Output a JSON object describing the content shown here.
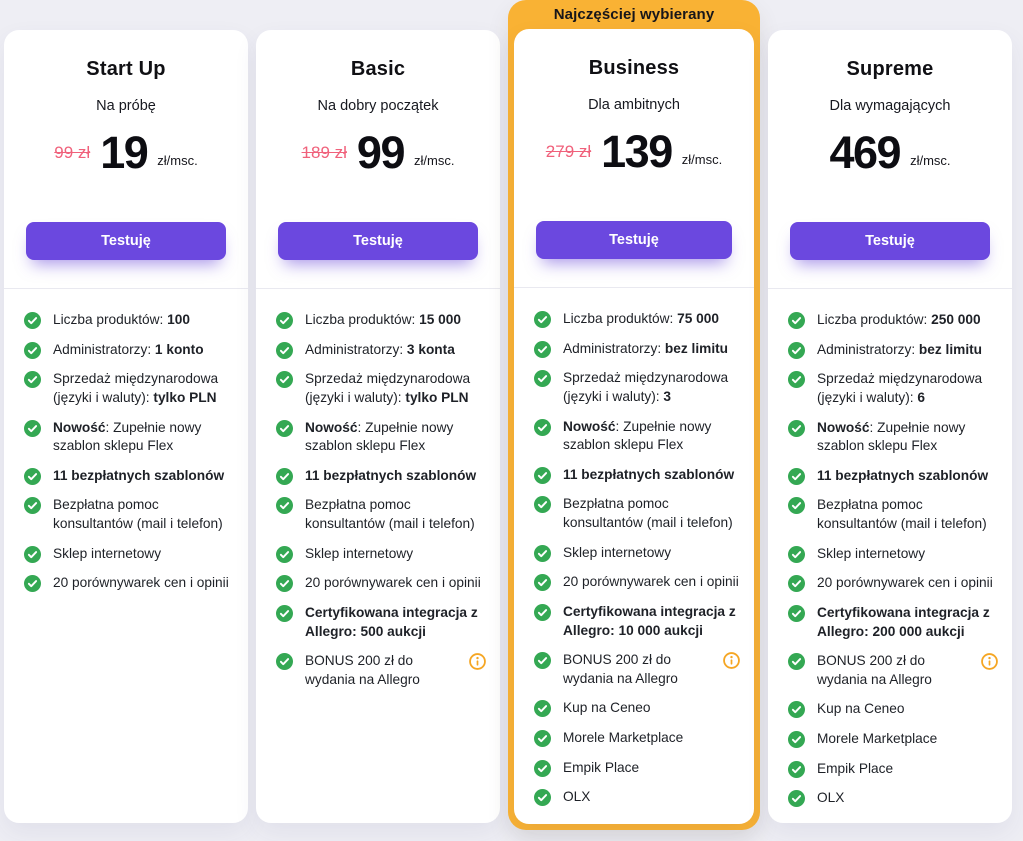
{
  "colors": {
    "page_background": "#EEEEF4",
    "accent_purple": "#6B48DF",
    "badge_orange": "#F9B234",
    "check_green": "#34A853",
    "info_orange": "#F5A623",
    "old_price_red": "#F0617B"
  },
  "badge": {
    "label": "Najczęściej wybierany"
  },
  "cards": [
    {
      "title": "Start Up",
      "tagline": "Na próbę",
      "old_price": "99 zł",
      "price": "19",
      "price_unit": "zł/msc.",
      "cta": "Testuję",
      "highlighted": false,
      "features": [
        {
          "segments": [
            {
              "t": "Liczba produktów: ",
              "b": false
            },
            {
              "t": "100",
              "b": true
            }
          ]
        },
        {
          "segments": [
            {
              "t": "Administratorzy: ",
              "b": false
            },
            {
              "t": "1 konto",
              "b": true
            }
          ]
        },
        {
          "segments": [
            {
              "t": "Sprzedaż międzynarodowa (języki i waluty): ",
              "b": false
            },
            {
              "t": "tylko PLN",
              "b": true
            }
          ]
        },
        {
          "segments": [
            {
              "t": "Nowość",
              "b": true
            },
            {
              "t": ": Zupełnie nowy szablon sklepu Flex",
              "b": false
            }
          ]
        },
        {
          "segments": [
            {
              "t": "11 bezpłatnych szablonów",
              "b": true
            }
          ]
        },
        {
          "segments": [
            {
              "t": "Bezpłatna pomoc konsultantów (mail i telefon)",
              "b": false
            }
          ]
        },
        {
          "segments": [
            {
              "t": "Sklep internetowy",
              "b": false
            }
          ]
        },
        {
          "segments": [
            {
              "t": "20 porównywarek cen i opinii",
              "b": false
            }
          ]
        }
      ]
    },
    {
      "title": "Basic",
      "tagline": "Na dobry początek",
      "old_price": "189 zł",
      "price": "99",
      "price_unit": "zł/msc.",
      "cta": "Testuję",
      "highlighted": false,
      "features": [
        {
          "segments": [
            {
              "t": "Liczba produktów: ",
              "b": false
            },
            {
              "t": "15 000",
              "b": true
            }
          ]
        },
        {
          "segments": [
            {
              "t": "Administratorzy: ",
              "b": false
            },
            {
              "t": "3 konta",
              "b": true
            }
          ]
        },
        {
          "segments": [
            {
              "t": "Sprzedaż międzynarodowa (języki i waluty): ",
              "b": false
            },
            {
              "t": "tylko PLN",
              "b": true
            }
          ]
        },
        {
          "segments": [
            {
              "t": "Nowość",
              "b": true
            },
            {
              "t": ": Zupełnie nowy szablon sklepu Flex",
              "b": false
            }
          ]
        },
        {
          "segments": [
            {
              "t": "11 bezpłatnych szablonów",
              "b": true
            }
          ]
        },
        {
          "segments": [
            {
              "t": "Bezpłatna pomoc konsultantów (mail i telefon)",
              "b": false
            }
          ]
        },
        {
          "segments": [
            {
              "t": "Sklep internetowy",
              "b": false
            }
          ]
        },
        {
          "segments": [
            {
              "t": "20 porównywarek cen i opinii",
              "b": false
            }
          ]
        },
        {
          "segments": [
            {
              "t": "Certyfikowana integracja z Allegro: 500 aukcji",
              "b": true
            }
          ]
        },
        {
          "segments": [
            {
              "t": "BONUS 200 zł do wydania na Allegro",
              "b": false
            }
          ],
          "info": true
        }
      ]
    },
    {
      "title": "Business",
      "tagline": "Dla ambitnych",
      "old_price": "279 zł",
      "price": "139",
      "price_unit": "zł/msc.",
      "cta": "Testuję",
      "highlighted": true,
      "features": [
        {
          "segments": [
            {
              "t": "Liczba produktów: ",
              "b": false
            },
            {
              "t": "75 000",
              "b": true
            }
          ]
        },
        {
          "segments": [
            {
              "t": "Administratorzy: ",
              "b": false
            },
            {
              "t": "bez limitu",
              "b": true
            }
          ]
        },
        {
          "segments": [
            {
              "t": "Sprzedaż międzynarodowa (języki i waluty): ",
              "b": false
            },
            {
              "t": "3",
              "b": true
            }
          ]
        },
        {
          "segments": [
            {
              "t": "Nowość",
              "b": true
            },
            {
              "t": ": Zupełnie nowy szablon sklepu Flex",
              "b": false
            }
          ]
        },
        {
          "segments": [
            {
              "t": "11 bezpłatnych szablonów",
              "b": true
            }
          ]
        },
        {
          "segments": [
            {
              "t": "Bezpłatna pomoc konsultantów (mail i telefon)",
              "b": false
            }
          ]
        },
        {
          "segments": [
            {
              "t": "Sklep internetowy",
              "b": false
            }
          ]
        },
        {
          "segments": [
            {
              "t": "20 porównywarek cen i opinii",
              "b": false
            }
          ]
        },
        {
          "segments": [
            {
              "t": "Certyfikowana integracja z Allegro: 10 000 aukcji",
              "b": true
            }
          ]
        },
        {
          "segments": [
            {
              "t": "BONUS 200 zł do wydania na Allegro",
              "b": false
            }
          ],
          "info": true
        },
        {
          "segments": [
            {
              "t": "Kup na Ceneo",
              "b": false
            }
          ]
        },
        {
          "segments": [
            {
              "t": "Morele Marketplace",
              "b": false
            }
          ]
        },
        {
          "segments": [
            {
              "t": "Empik Place",
              "b": false
            }
          ]
        },
        {
          "segments": [
            {
              "t": "OLX",
              "b": false
            }
          ]
        }
      ]
    },
    {
      "title": "Supreme",
      "tagline": "Dla wymagających",
      "old_price": "",
      "price": "469",
      "price_unit": "zł/msc.",
      "cta": "Testuję",
      "highlighted": false,
      "features": [
        {
          "segments": [
            {
              "t": "Liczba produktów: ",
              "b": false
            },
            {
              "t": "250 000",
              "b": true
            }
          ]
        },
        {
          "segments": [
            {
              "t": "Administratorzy: ",
              "b": false
            },
            {
              "t": "bez limitu",
              "b": true
            }
          ]
        },
        {
          "segments": [
            {
              "t": "Sprzedaż międzynarodowa (języki i waluty): ",
              "b": false
            },
            {
              "t": "6",
              "b": true
            }
          ]
        },
        {
          "segments": [
            {
              "t": "Nowość",
              "b": true
            },
            {
              "t": ": Zupełnie nowy szablon sklepu Flex",
              "b": false
            }
          ]
        },
        {
          "segments": [
            {
              "t": "11 bezpłatnych szablonów",
              "b": true
            }
          ]
        },
        {
          "segments": [
            {
              "t": "Bezpłatna pomoc konsultantów (mail i telefon)",
              "b": false
            }
          ]
        },
        {
          "segments": [
            {
              "t": "Sklep internetowy",
              "b": false
            }
          ]
        },
        {
          "segments": [
            {
              "t": "20 porównywarek cen i opinii",
              "b": false
            }
          ]
        },
        {
          "segments": [
            {
              "t": "Certyfikowana integracja z Allegro: 200 000 aukcji",
              "b": true
            }
          ]
        },
        {
          "segments": [
            {
              "t": "BONUS 200 zł do wydania na Allegro",
              "b": false
            }
          ],
          "info": true
        },
        {
          "segments": [
            {
              "t": "Kup na Ceneo",
              "b": false
            }
          ]
        },
        {
          "segments": [
            {
              "t": "Morele Marketplace",
              "b": false
            }
          ]
        },
        {
          "segments": [
            {
              "t": "Empik Place",
              "b": false
            }
          ]
        },
        {
          "segments": [
            {
              "t": "OLX",
              "b": false
            }
          ]
        }
      ]
    }
  ]
}
